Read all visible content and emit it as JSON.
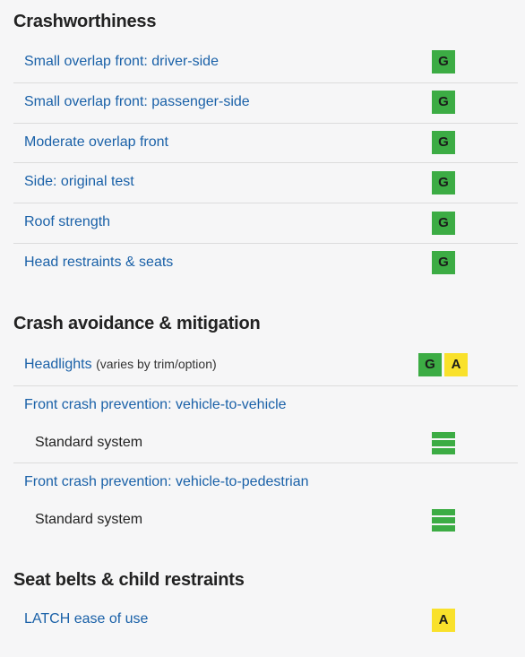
{
  "crashworthiness": {
    "title": "Crashworthiness",
    "items": [
      {
        "label": "Small overlap front: driver-side",
        "rating": "G"
      },
      {
        "label": "Small overlap front: passenger-side",
        "rating": "G"
      },
      {
        "label": "Moderate overlap front",
        "rating": "G"
      },
      {
        "label": "Side: original test",
        "rating": "G"
      },
      {
        "label": "Roof strength",
        "rating": "G"
      },
      {
        "label": "Head restraints & seats",
        "rating": "G"
      }
    ]
  },
  "crash_avoidance": {
    "title": "Crash avoidance & mitigation",
    "headlights": {
      "label": "Headlights",
      "note": "(varies by trim/option)",
      "ratings": [
        "G",
        "A"
      ]
    },
    "vehicle_to_vehicle": {
      "label": "Front crash prevention: vehicle-to-vehicle",
      "system": "Standard system",
      "rating_icon": "superior-bars-icon"
    },
    "vehicle_to_pedestrian": {
      "label": "Front crash prevention: vehicle-to-pedestrian",
      "system": "Standard system",
      "rating_icon": "superior-bars-icon"
    }
  },
  "seat_belts": {
    "title": "Seat belts & child restraints",
    "latch": {
      "label": "LATCH ease of use",
      "rating": "A"
    }
  },
  "colors": {
    "good": "#3cac44",
    "acceptable": "#f9e12b",
    "link": "#1a61a8"
  }
}
